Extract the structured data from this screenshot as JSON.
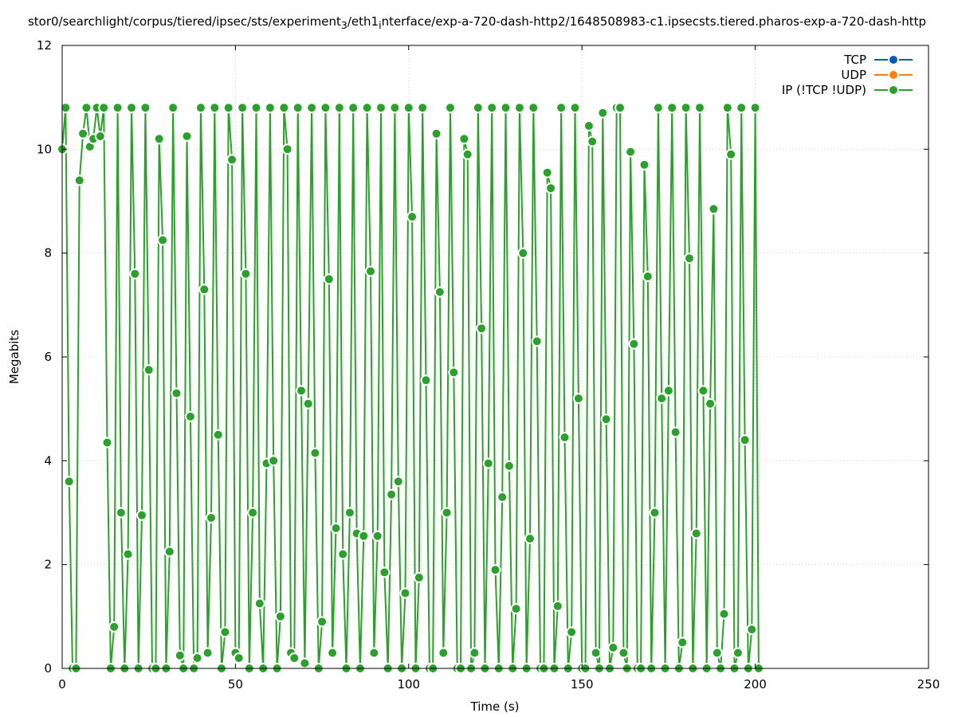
{
  "chart_data": {
    "type": "line",
    "title_prefix": "stor0/searchlight/corpus/tiered/ipsec/sts/experiment",
    "title_sub1": "3",
    "title_mid": "/eth1",
    "title_sub2": "i",
    "title_suffix": "nterface/exp-a-720-dash-http2/1648508983-c1.ipsecsts.tiered.pharos-exp-a-720-dash-http",
    "xlabel": "Time (s)",
    "ylabel": "Megabits",
    "xlim": [
      0,
      250
    ],
    "ylim": [
      0,
      12
    ],
    "xticks": [
      "0",
      "50",
      "100",
      "150",
      "200",
      "250"
    ],
    "yticks": [
      "0",
      "2",
      "4",
      "6",
      "8",
      "10",
      "12"
    ],
    "grid": true,
    "legend_position": "top-right",
    "series": [
      {
        "name": "TCP",
        "color": "#0060ad",
        "x": [],
        "y": []
      },
      {
        "name": "UDP",
        "color": "#ff7f0e",
        "x": [
          201
        ],
        "y": [
          0
        ]
      },
      {
        "name": "IP (!TCP  !UDP)",
        "color": "#2ca02c",
        "x": [
          0,
          1,
          2,
          3,
          4,
          5,
          6,
          7,
          8,
          9,
          10,
          11,
          12,
          13,
          14,
          15,
          16,
          17,
          18,
          19,
          20,
          21,
          22,
          23,
          24,
          25,
          26,
          27,
          28,
          29,
          30,
          31,
          32,
          33,
          34,
          35,
          36,
          37,
          38,
          39,
          40,
          41,
          42,
          43,
          44,
          45,
          46,
          47,
          48,
          49,
          50,
          51,
          52,
          53,
          54,
          55,
          56,
          57,
          58,
          59,
          60,
          61,
          62,
          63,
          64,
          65,
          66,
          67,
          68,
          69,
          70,
          71,
          72,
          73,
          74,
          75,
          76,
          77,
          78,
          79,
          80,
          81,
          82,
          83,
          84,
          85,
          86,
          87,
          88,
          89,
          90,
          91,
          92,
          93,
          94,
          95,
          96,
          97,
          98,
          99,
          100,
          101,
          102,
          103,
          104,
          105,
          106,
          107,
          108,
          109,
          110,
          111,
          112,
          113,
          114,
          115,
          116,
          117,
          118,
          119,
          120,
          121,
          122,
          123,
          124,
          125,
          126,
          127,
          128,
          129,
          130,
          131,
          132,
          133,
          134,
          135,
          136,
          137,
          138,
          139,
          140,
          141,
          142,
          143,
          144,
          145,
          146,
          147,
          148,
          149,
          150,
          151,
          152,
          153,
          154,
          155,
          156,
          157,
          158,
          159,
          160,
          161,
          162,
          163,
          164,
          165,
          166,
          167,
          168,
          169,
          170,
          171,
          172,
          173,
          174,
          175,
          176,
          177,
          178,
          179,
          180,
          181,
          182,
          183,
          184,
          185,
          186,
          187,
          188,
          189,
          190,
          191,
          192,
          193,
          194,
          195,
          196,
          197,
          198,
          199,
          200,
          201
        ],
        "y": [
          10.0,
          10.8,
          3.6,
          0.0,
          0.0,
          9.4,
          10.3,
          10.8,
          10.05,
          10.2,
          10.8,
          10.25,
          10.8,
          4.35,
          0.0,
          0.8,
          10.8,
          3.0,
          0.0,
          2.2,
          10.8,
          7.6,
          0.0,
          2.95,
          10.8,
          5.75,
          0.0,
          0.0,
          10.2,
          8.25,
          0.0,
          2.25,
          10.8,
          5.3,
          0.25,
          0.0,
          10.25,
          4.85,
          0.0,
          0.2,
          10.8,
          7.3,
          0.3,
          2.9,
          10.8,
          4.5,
          0.0,
          0.7,
          10.8,
          9.8,
          0.3,
          0.2,
          10.8,
          7.6,
          0.0,
          3.0,
          10.8,
          1.25,
          0.0,
          3.95,
          10.8,
          4.0,
          0.0,
          1.0,
          10.8,
          10.0,
          0.3,
          0.2,
          10.8,
          5.35,
          0.1,
          5.1,
          10.8,
          4.15,
          0.0,
          0.9,
          10.8,
          7.5,
          0.3,
          2.7,
          10.8,
          2.2,
          0.0,
          3.0,
          10.8,
          2.6,
          0.0,
          2.55,
          10.8,
          7.65,
          0.3,
          2.55,
          10.8,
          1.85,
          0.0,
          3.35,
          10.8,
          3.6,
          0.0,
          1.45,
          10.8,
          8.7,
          0.0,
          1.75,
          10.8,
          5.55,
          0.0,
          0.0,
          10.3,
          7.25,
          0.3,
          3.0,
          10.8,
          5.7,
          0.0,
          0.0,
          10.2,
          9.9,
          0.0,
          0.3,
          10.8,
          6.55,
          0.0,
          3.95,
          10.8,
          1.9,
          0.0,
          3.3,
          10.8,
          3.9,
          0.0,
          1.15,
          10.8,
          8.0,
          0.0,
          2.5,
          10.8,
          6.3,
          0.0,
          0.0,
          9.55,
          9.25,
          0.0,
          1.2,
          10.8,
          4.45,
          0.0,
          0.7,
          10.8,
          5.2,
          0.0,
          0.0,
          10.45,
          10.15,
          0.3,
          0.0,
          10.7,
          4.8,
          0.0,
          0.4,
          10.8,
          10.8,
          0.3,
          0.0,
          9.95,
          6.25,
          0.0,
          0.0,
          9.7,
          7.55,
          0.0,
          3.0,
          10.8,
          5.2,
          0.0,
          5.35,
          10.8,
          4.55,
          0.0,
          0.5,
          10.8,
          7.9,
          0.0,
          2.6,
          10.8,
          5.35,
          0.0,
          5.1,
          8.85,
          0.3,
          0.0,
          1.05,
          10.8,
          9.9,
          0.0,
          0.3,
          10.8,
          4.4,
          0.0,
          0.75,
          10.8,
          0.0
        ]
      }
    ]
  }
}
